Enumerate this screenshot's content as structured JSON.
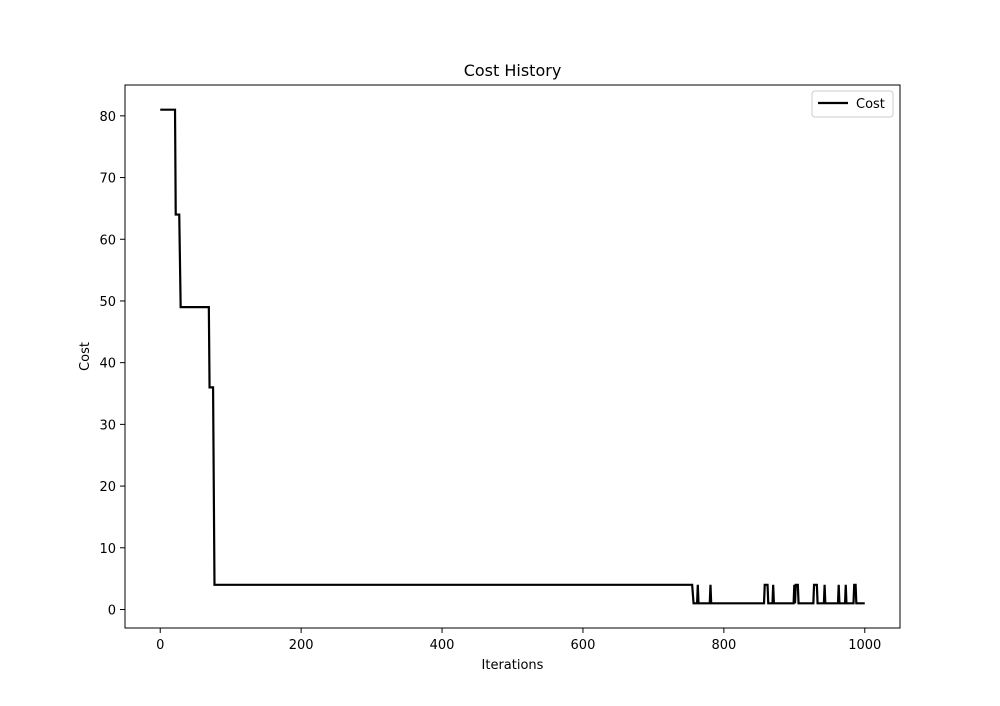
{
  "chart_data": {
    "type": "line",
    "title": "Cost History",
    "xlabel": "Iterations",
    "ylabel": "Cost",
    "xlim": [
      -50,
      1050
    ],
    "ylim": [
      -3,
      85
    ],
    "xticks": [
      0,
      200,
      400,
      600,
      800,
      1000
    ],
    "yticks": [
      0,
      10,
      20,
      30,
      40,
      50,
      60,
      70,
      80
    ],
    "grid": false,
    "legend_position": "top-right",
    "series": [
      {
        "name": "Cost",
        "color": "#000000",
        "step_points": [
          [
            0,
            81
          ],
          [
            21,
            81
          ],
          [
            22,
            64
          ],
          [
            27,
            64
          ],
          [
            29,
            49
          ],
          [
            69,
            49
          ],
          [
            70,
            36
          ],
          [
            75,
            36
          ],
          [
            77,
            4
          ],
          [
            755,
            4
          ],
          [
            757,
            1
          ],
          [
            762,
            1
          ],
          [
            763,
            4
          ],
          [
            764,
            1
          ],
          [
            780,
            1
          ],
          [
            781,
            4
          ],
          [
            782,
            1
          ],
          [
            857,
            1
          ],
          [
            858,
            4
          ],
          [
            862,
            4
          ],
          [
            863,
            1
          ],
          [
            869,
            1
          ],
          [
            870,
            4
          ],
          [
            871,
            1
          ],
          [
            899,
            1
          ],
          [
            900,
            4
          ],
          [
            901,
            1
          ],
          [
            902,
            4
          ],
          [
            905,
            4
          ],
          [
            906,
            1
          ],
          [
            927,
            1
          ],
          [
            928,
            4
          ],
          [
            932,
            4
          ],
          [
            933,
            1
          ],
          [
            942,
            1
          ],
          [
            943,
            4
          ],
          [
            944,
            1
          ],
          [
            962,
            1
          ],
          [
            963,
            4
          ],
          [
            964,
            1
          ],
          [
            972,
            1
          ],
          [
            973,
            4
          ],
          [
            974,
            1
          ],
          [
            984,
            1
          ],
          [
            985,
            4
          ],
          [
            987,
            4
          ],
          [
            988,
            1
          ],
          [
            1000,
            1
          ]
        ]
      }
    ]
  }
}
